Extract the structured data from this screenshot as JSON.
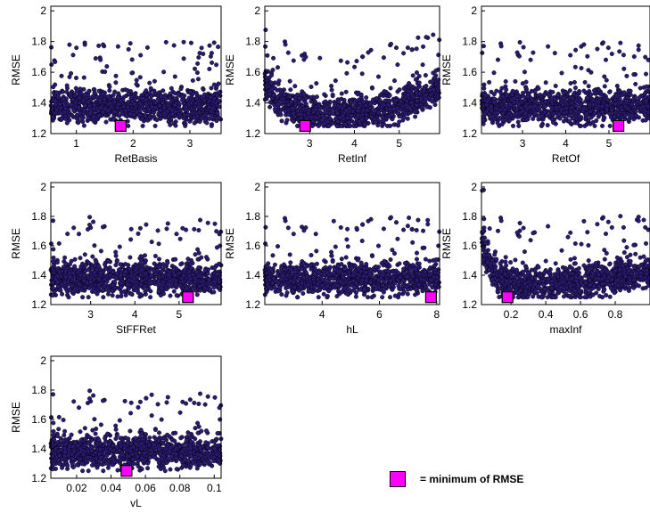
{
  "marker_color": "#ff00ff",
  "point_color": "#2a1a70",
  "legend": {
    "label": "= minimum of RMSE"
  },
  "chart_data": [
    {
      "type": "scatter",
      "xlabel": "RetBasis",
      "ylabel": "RMSE",
      "xlim": [
        0.55,
        3.55
      ],
      "ylim": [
        1.2,
        2.03
      ],
      "xticks": [
        1,
        2,
        3
      ],
      "yticks": [
        1.2,
        1.4,
        1.6,
        1.8,
        2
      ],
      "cloud": {
        "shape": "flat",
        "center": 1.38,
        "outlier_max": 1.97
      },
      "minimum": {
        "x": 1.78,
        "y": 1.25
      }
    },
    {
      "type": "scatter",
      "xlabel": "RetInf",
      "ylabel": "RMSE",
      "xlim": [
        2.0,
        5.9
      ],
      "ylim": [
        1.2,
        2.03
      ],
      "xticks": [
        3,
        4,
        5
      ],
      "yticks": [
        1.2,
        1.4,
        1.6,
        1.8,
        2
      ],
      "cloud": {
        "shape": "valley",
        "center": 1.38,
        "outlier_max": 1.92
      },
      "minimum": {
        "x": 2.9,
        "y": 1.25
      }
    },
    {
      "type": "scatter",
      "xlabel": "RetOf",
      "ylabel": "RMSE",
      "xlim": [
        2.05,
        5.95
      ],
      "ylim": [
        1.2,
        2.03
      ],
      "xticks": [
        3,
        4,
        5
      ],
      "yticks": [
        1.2,
        1.4,
        1.6,
        1.8,
        2
      ],
      "cloud": {
        "shape": "flat",
        "center": 1.38,
        "outlier_max": 1.97
      },
      "minimum": {
        "x": 5.22,
        "y": 1.25
      }
    },
    {
      "type": "scatter",
      "xlabel": "StFFRet",
      "ylabel": "RMSE",
      "xlim": [
        2.1,
        5.95
      ],
      "ylim": [
        1.2,
        2.03
      ],
      "xticks": [
        3,
        4,
        5
      ],
      "yticks": [
        1.2,
        1.4,
        1.6,
        1.8,
        2
      ],
      "cloud": {
        "shape": "flat",
        "center": 1.38,
        "outlier_max": 1.97
      },
      "minimum": {
        "x": 5.2,
        "y": 1.25
      }
    },
    {
      "type": "scatter",
      "xlabel": "hL",
      "ylabel": "RMSE",
      "xlim": [
        2.0,
        8.1
      ],
      "ylim": [
        1.2,
        2.03
      ],
      "xticks": [
        4,
        6,
        8
      ],
      "yticks": [
        1.2,
        1.4,
        1.6,
        1.8,
        2
      ],
      "cloud": {
        "shape": "flat",
        "center": 1.38,
        "outlier_max": 1.97
      },
      "minimum": {
        "x": 7.8,
        "y": 1.25
      }
    },
    {
      "type": "scatter",
      "xlabel": "maxInf",
      "ylabel": "RMSE",
      "xlim": [
        0.03,
        1.0
      ],
      "ylim": [
        1.2,
        2.03
      ],
      "xticks": [
        0.2,
        0.4,
        0.6,
        0.8
      ],
      "yticks": [
        1.2,
        1.4,
        1.6,
        1.8,
        2
      ],
      "cloud": {
        "shape": "curve",
        "center": 1.38,
        "outlier_max": 1.98
      },
      "minimum": {
        "x": 0.18,
        "y": 1.25
      }
    },
    {
      "type": "scatter",
      "xlabel": "vL",
      "ylabel": "RMSE",
      "xlim": [
        0.005,
        0.104
      ],
      "ylim": [
        1.2,
        2.03
      ],
      "xticks": [
        0.02,
        0.04,
        0.06,
        0.08,
        0.1
      ],
      "yticks": [
        1.2,
        1.4,
        1.6,
        1.8,
        2
      ],
      "cloud": {
        "shape": "flat",
        "center": 1.38,
        "outlier_max": 1.97
      },
      "minimum": {
        "x": 0.049,
        "y": 1.25
      }
    }
  ]
}
